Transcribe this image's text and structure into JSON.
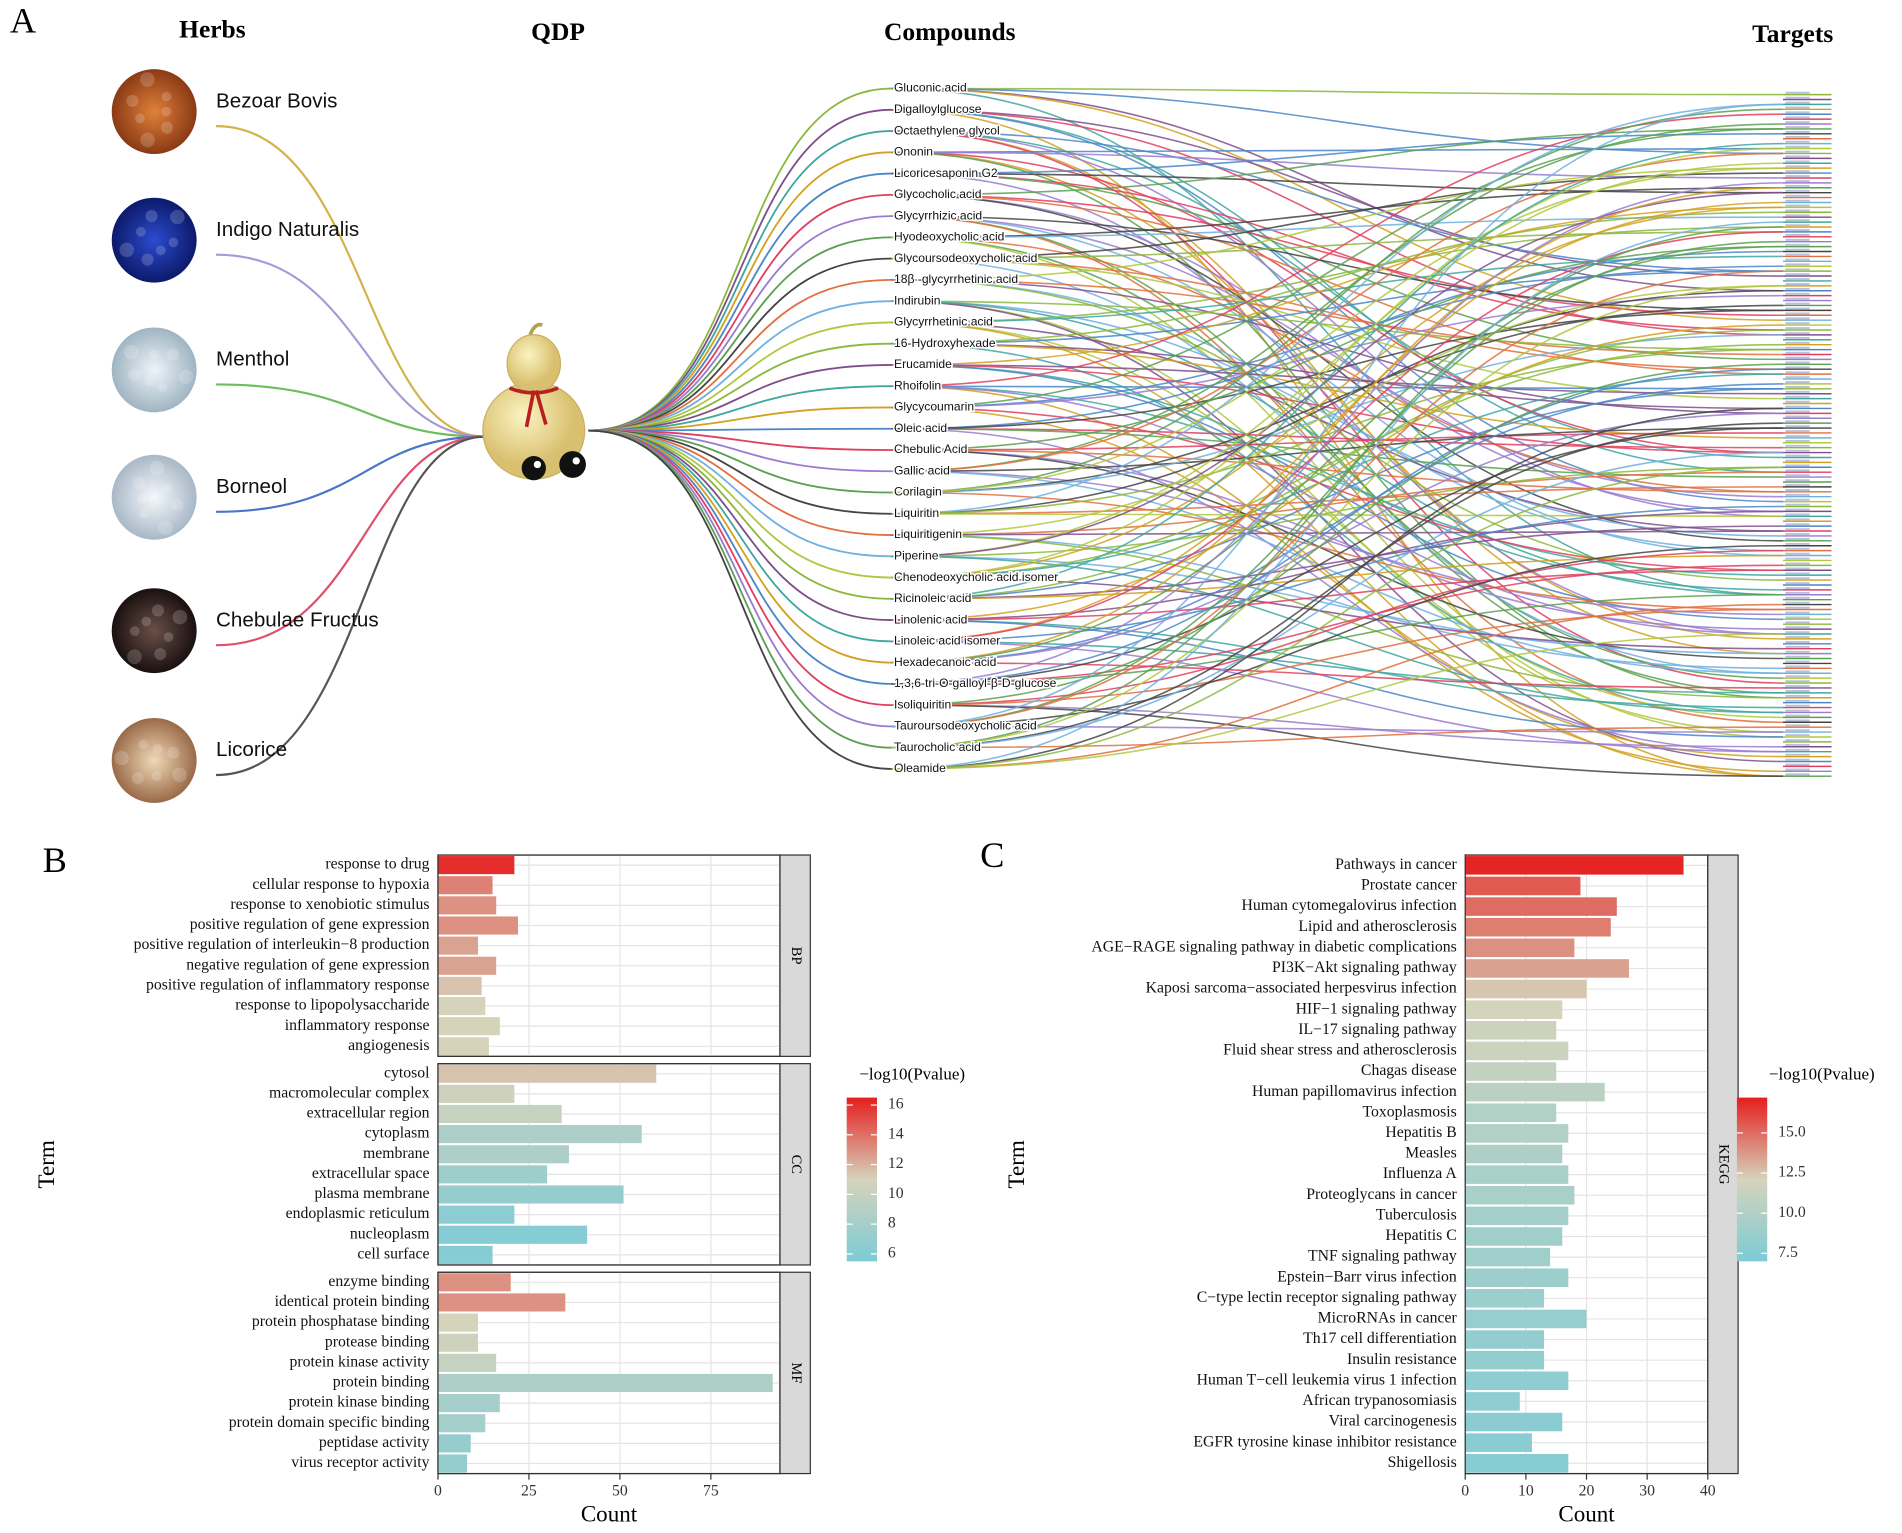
{
  "network": {
    "panel_label": "A",
    "headers": [
      "Herbs",
      "QDP",
      "Compounds",
      "Targets"
    ],
    "herbs": [
      "Bezoar Bovis",
      "Indigo Naturalis",
      "Menthol",
      "Borneol",
      "Chebulae Fructus",
      "Licorice"
    ],
    "compounds": [
      "Gluconic acid",
      "Digalloylglucose",
      "Octaethylene glycol",
      "Ononin",
      "Licoricesaponin G2",
      "Glycocholic acid",
      "Glycyrrhizic acid",
      "Hyodeoxycholic acid",
      "Glycoursodeoxycholic acid",
      "18β -glycyrrhetinic acid",
      "Indirubin",
      "Glycyrrhetinic acid",
      "16-Hydroxyhexade",
      "Erucamide",
      "Rhoifolin",
      "Glycycoumarin",
      "Oleic acid",
      "Chebulic Acid",
      "Gallic acid",
      "Corilagin",
      "Liquiritin",
      "Liquiritigenin",
      "Piperine",
      "Chenodeoxycholic acid isomer",
      "Ricinoleic acid",
      "Linolenic acid",
      "Linoleic acid isomer",
      "Hexadecanoic acid",
      "1,3,6-tri-O-galloyl-β-D-glucose",
      "Isoliquiritin",
      "Tauroursodeoxycholic acid",
      "Taurocholic acid",
      "Oleamide"
    ]
  },
  "chart_data": [
    {
      "type": "bar",
      "panel_label": "B",
      "x_label": "Count",
      "y_label": "Term",
      "xlim": [
        0,
        94
      ],
      "xticks": [
        0,
        25,
        50,
        75
      ],
      "grid": true,
      "colorbar": {
        "title": "−log10(Pvalue)",
        "lim": [
          5.5,
          16.5
        ],
        "ticks": [
          6,
          8,
          10,
          12,
          14,
          16
        ],
        "colors": [
          "#7dcbd6",
          "#d6d3bb",
          "#e61e1e"
        ]
      },
      "facets": [
        {
          "name": "BP",
          "categories": [
            "response to drug",
            "cellular response to hypoxia",
            "response to xenobiotic stimulus",
            "positive regulation of gene expression",
            "positive regulation of interleukin−8 production",
            "negative regulation of gene expression",
            "positive regulation of inflammatory response",
            "response to lipopolysaccharide",
            "inflammatory response",
            "angiogenesis"
          ],
          "values": [
            21,
            15,
            16,
            22,
            11,
            16,
            12,
            13,
            17,
            14
          ],
          "color_values": [
            16,
            13.5,
            13,
            13,
            12.5,
            12.5,
            11.5,
            11,
            11,
            11
          ]
        },
        {
          "name": "CC",
          "categories": [
            "cytosol",
            "macromolecular complex",
            "extracellular region",
            "cytoplasm",
            "membrane",
            "extracellular space",
            "plasma membrane",
            "endoplasmic reticulum",
            "nucleoplasm",
            "cell surface"
          ],
          "values": [
            60,
            21,
            34,
            56,
            36,
            30,
            51,
            21,
            41,
            15
          ],
          "color_values": [
            11.5,
            10.5,
            10,
            8.5,
            8.5,
            7.5,
            7,
            6.5,
            6,
            6
          ]
        },
        {
          "name": "MF",
          "categories": [
            "enzyme binding",
            "identical protein binding",
            "protein phosphatase binding",
            "protease binding",
            "protein kinase activity",
            "protein binding",
            "protein kinase binding",
            "protein domain specific binding",
            "peptidase activity",
            "virus receptor activity"
          ],
          "values": [
            20,
            35,
            11,
            11,
            16,
            92,
            17,
            13,
            9,
            8
          ],
          "color_values": [
            13,
            13,
            11,
            10.5,
            10,
            8.5,
            8,
            8,
            7,
            7
          ]
        }
      ]
    },
    {
      "type": "bar",
      "panel_label": "C",
      "x_label": "Count",
      "y_label": "Term",
      "xlim": [
        0,
        40
      ],
      "xticks": [
        0,
        10,
        20,
        30,
        40
      ],
      "grid": true,
      "colorbar": {
        "title": "−log10(Pvalue)",
        "lim": [
          7,
          17.2
        ],
        "ticks": [
          7.5,
          {
            "value": 10,
            "label": "10.0"
          },
          12.5,
          {
            "value": 15,
            "label": "15.0"
          }
        ],
        "colors": [
          "#7dcbd6",
          "#d6d3bb",
          "#e61e1e"
        ]
      },
      "facets": [
        {
          "name": "KEGG",
          "categories": [
            "Pathways in cancer",
            "Prostate cancer",
            "Human cytomegalovirus infection",
            "Lipid and atherosclerosis",
            "AGE−RAGE signaling pathway in diabetic complications",
            "PI3K−Akt signaling pathway",
            "Kaposi sarcoma−associated herpesvirus infection",
            "HIF−1 signaling pathway",
            "IL−17 signaling pathway",
            "Fluid shear stress and atherosclerosis",
            "Chagas disease",
            "Human papillomavirus infection",
            "Toxoplasmosis",
            "Hepatitis B",
            "Measles",
            "Influenza A",
            "Proteoglycans in cancer",
            "Tuberculosis",
            "Hepatitis C",
            "TNF signaling pathway",
            "Epstein−Barr virus infection",
            "C−type lectin receptor signaling pathway",
            "MicroRNAs in cancer",
            "Th17 cell differentiation",
            "Insulin resistance",
            "Human T−cell leukemia virus 1 infection",
            "African trypanosomiasis",
            "Viral carcinogenesis",
            "EGFR tyrosine kinase inhibitor resistance",
            "Shigellosis"
          ],
          "values": [
            36,
            19,
            25,
            24,
            18,
            27,
            20,
            16,
            15,
            17,
            15,
            23,
            15,
            17,
            16,
            17,
            18,
            17,
            16,
            14,
            17,
            13,
            20,
            13,
            13,
            17,
            9,
            16,
            11,
            17
          ],
          "color_values": [
            17,
            15.5,
            15,
            14.5,
            14,
            13.5,
            12.5,
            12,
            11.5,
            11.5,
            11,
            10.5,
            10,
            10,
            9.8,
            9.5,
            9.5,
            9.3,
            9,
            9,
            8.8,
            8.7,
            8.5,
            8.3,
            8.2,
            8,
            8,
            7.8,
            7.7,
            7.6
          ]
        }
      ]
    }
  ]
}
